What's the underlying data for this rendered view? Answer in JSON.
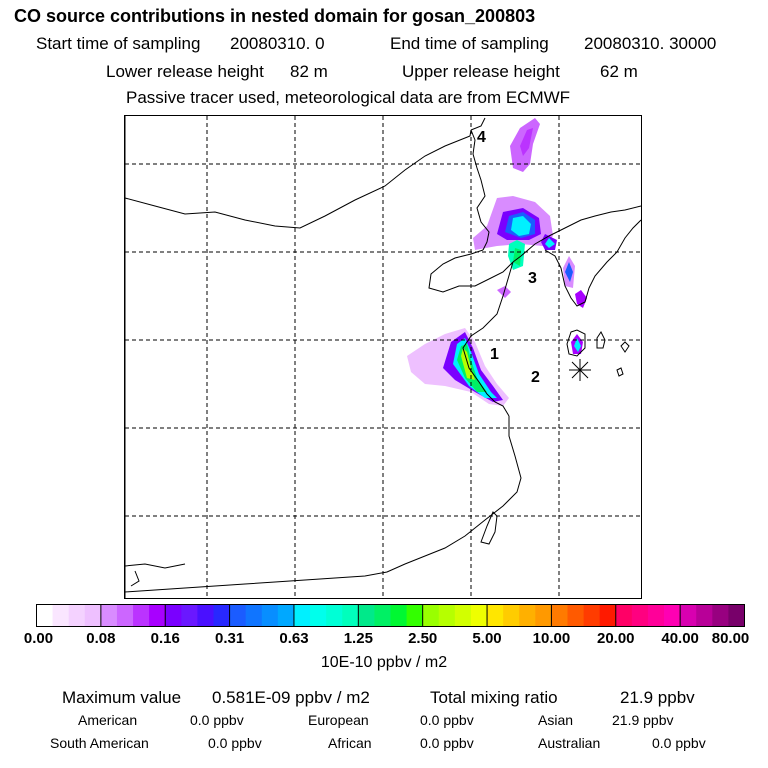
{
  "header": {
    "title": "CO  source contributions in nested domain for gosan_200803",
    "start_label": "Start time of sampling",
    "start_value": "20080310.     0",
    "end_label": "End time of sampling",
    "end_value": "20080310. 30000",
    "lower_label": "Lower release height",
    "lower_value": "82 m",
    "upper_label": "Upper release height",
    "upper_value": "62 m",
    "note": "Passive tracer used, meteorological data are from ECMWF"
  },
  "map": {
    "region_labels": [
      "1",
      "2",
      "3",
      "4"
    ],
    "receptor_icon": "asterisk-receptor-icon"
  },
  "colorbar": {
    "tick_labels": [
      "0.00",
      "0.08",
      "0.16",
      "0.31",
      "0.63",
      "1.25",
      "2.50",
      "5.00",
      "10.00",
      "20.00",
      "40.00",
      "80.00"
    ],
    "colors": [
      "#ffffff",
      "#fae6ff",
      "#f4d2ff",
      "#eec0ff",
      "#d98cff",
      "#cc66ff",
      "#bb33ff",
      "#a800ff",
      "#7a00ff",
      "#6a18ff",
      "#4a10ff",
      "#2828ff",
      "#1b5cff",
      "#1075ff",
      "#088eff",
      "#00a8ff",
      "#00f0ff",
      "#00ffec",
      "#00ffd6",
      "#00ffbc",
      "#00e98a",
      "#00f064",
      "#00f832",
      "#33ff00",
      "#99ff00",
      "#b6ff00",
      "#d2ff00",
      "#eeff00",
      "#ffe600",
      "#ffcc00",
      "#ffb000",
      "#ff9900",
      "#ff7a00",
      "#ff5a00",
      "#ff3c00",
      "#ff1a00",
      "#ff0066",
      "#ff0080",
      "#ff0099",
      "#ff00b3",
      "#d800b0",
      "#b80098",
      "#980080",
      "#78006a"
    ],
    "units": "10E-10 ppbv / m2"
  },
  "stats": {
    "max_label": "Maximum value",
    "max_value": "0.581E-09 ppbv / m2",
    "total_label": "Total mixing ratio",
    "total_value": "21.9 ppbv"
  },
  "continents": [
    {
      "name": "American",
      "value": "0.0 ppbv"
    },
    {
      "name": "European",
      "value": "0.0 ppbv"
    },
    {
      "name": "Asian",
      "value": "21.9 ppbv"
    },
    {
      "name": "South American",
      "value": "0.0 ppbv"
    },
    {
      "name": "African",
      "value": "0.0 ppbv"
    },
    {
      "name": "Australian",
      "value": "0.0 ppbv"
    }
  ]
}
